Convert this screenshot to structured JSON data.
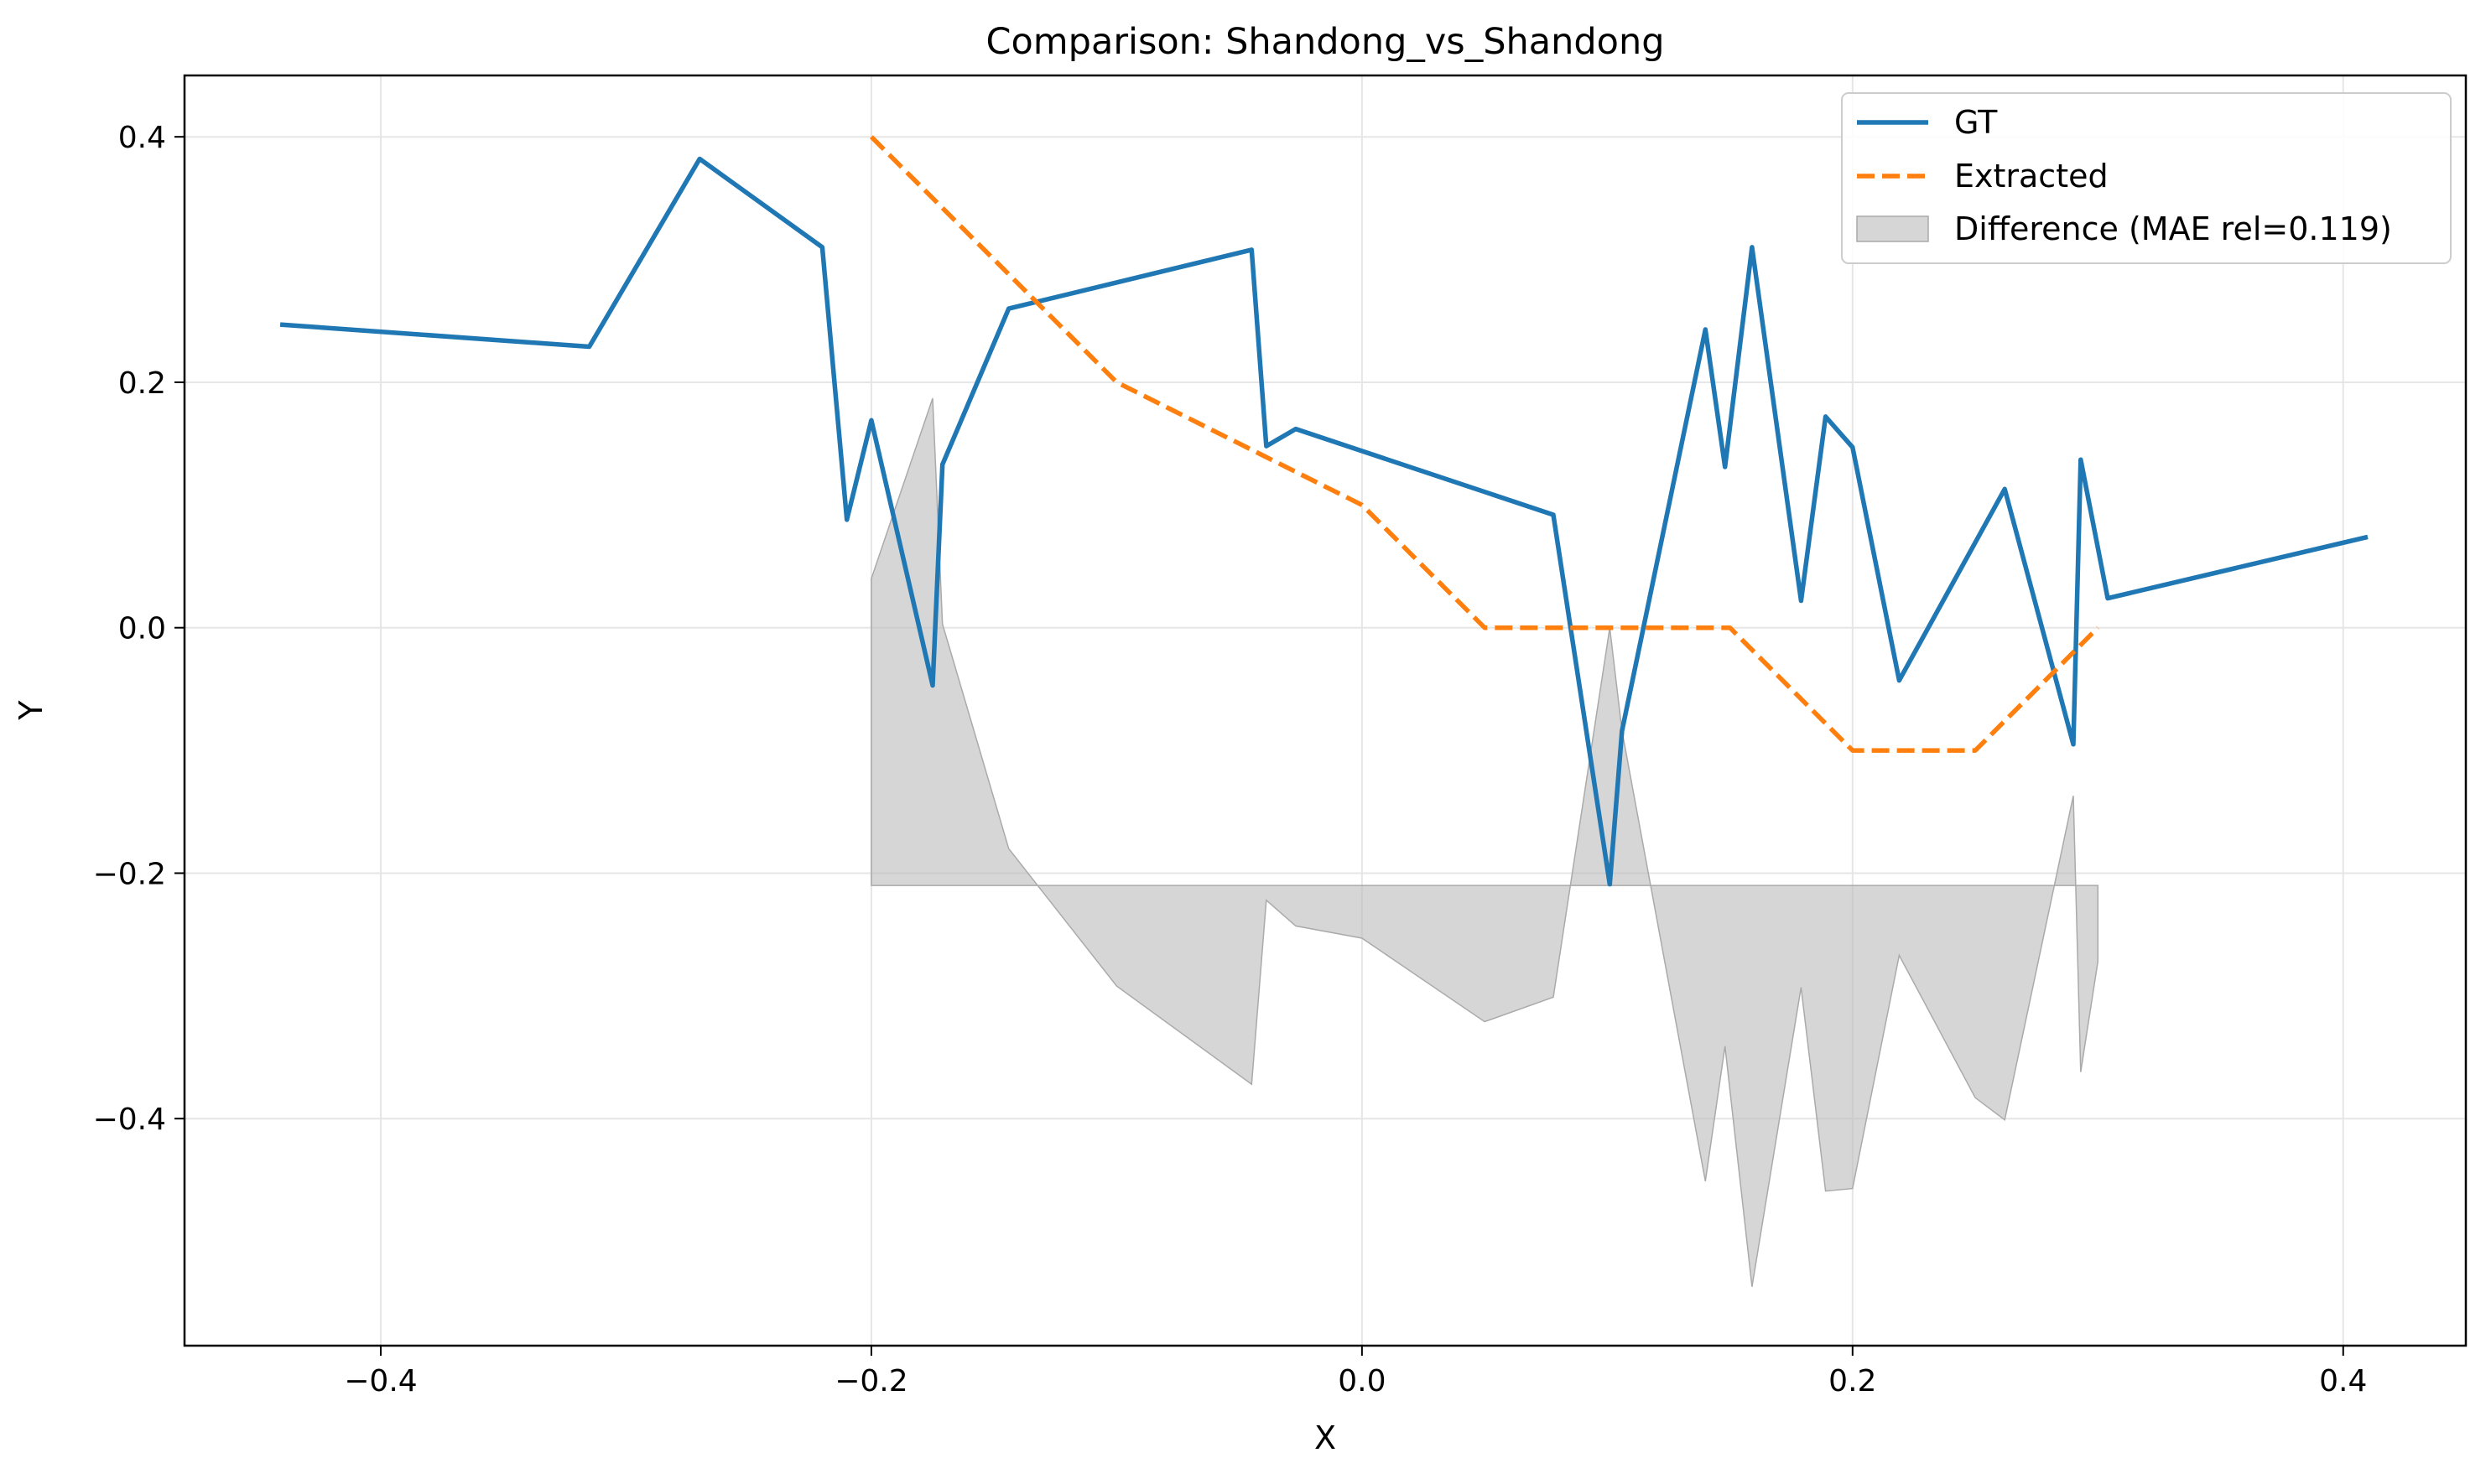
{
  "chart_data": {
    "type": "line",
    "title": "Comparison: Shandong_vs_Shandong",
    "xlabel": "X",
    "ylabel": "Y",
    "xlim": [
      -0.48,
      0.45
    ],
    "ylim": [
      -0.585,
      0.45
    ],
    "x_ticks": [
      -0.4,
      -0.2,
      0.0,
      0.2,
      0.4
    ],
    "x_tick_labels": [
      "−0.4",
      "−0.2",
      "0.0",
      "0.2",
      "0.4"
    ],
    "y_ticks": [
      -0.4,
      -0.2,
      0.0,
      0.2,
      0.4
    ],
    "y_tick_labels": [
      "−0.4",
      "−0.2",
      "0.0",
      "0.2",
      "0.4"
    ],
    "grid": true,
    "legend_position": "top-right",
    "series": [
      {
        "name": "GT",
        "color": "#1f77b4",
        "style": "solid",
        "x": [
          -0.441,
          -0.315,
          -0.27,
          -0.22,
          -0.21,
          -0.2,
          -0.175,
          -0.171,
          -0.144,
          -0.045,
          -0.039,
          -0.027,
          0.078,
          0.101,
          0.106,
          0.14,
          0.148,
          0.159,
          0.179,
          0.189,
          0.2,
          0.219,
          0.262,
          0.29,
          0.293,
          0.304,
          0.41
        ],
        "y": [
          0.247,
          0.229,
          0.382,
          0.31,
          0.088,
          0.169,
          -0.047,
          0.133,
          0.26,
          0.308,
          0.148,
          0.162,
          0.092,
          -0.209,
          -0.084,
          0.243,
          0.131,
          0.31,
          0.022,
          0.172,
          0.147,
          -0.043,
          0.113,
          -0.095,
          0.137,
          0.024,
          0.074
        ]
      },
      {
        "name": "Extracted",
        "color": "#ff7f0e",
        "style": "dashed",
        "x": [
          -0.2,
          -0.15,
          -0.1,
          -0.05,
          0.0,
          0.05,
          0.1,
          0.15,
          0.2,
          0.25,
          0.3
        ],
        "y": [
          0.4,
          0.3,
          0.2,
          0.15,
          0.1,
          0.0,
          0.0,
          0.0,
          -0.1,
          -0.1,
          0.0
        ]
      }
    ],
    "difference": {
      "name": "Difference (MAE rel=0.119)",
      "color": "#bbbbbb",
      "baseline": -0.21,
      "x": [
        -0.2,
        -0.175,
        -0.171,
        -0.144,
        -0.1,
        -0.045,
        -0.039,
        -0.027,
        0.0,
        0.05,
        0.078,
        0.101,
        0.106,
        0.14,
        0.148,
        0.159,
        0.179,
        0.189,
        0.2,
        0.219,
        0.25,
        0.262,
        0.29,
        0.293,
        0.3
      ],
      "y": [
        0.04,
        0.187,
        0.003,
        -0.18,
        -0.292,
        -0.372,
        -0.222,
        -0.243,
        -0.253,
        -0.321,
        -0.301,
        0.0,
        -0.084,
        -0.451,
        -0.341,
        -0.537,
        -0.293,
        -0.459,
        -0.457,
        -0.267,
        -0.383,
        -0.401,
        -0.137,
        -0.362,
        -0.272
      ]
    }
  }
}
